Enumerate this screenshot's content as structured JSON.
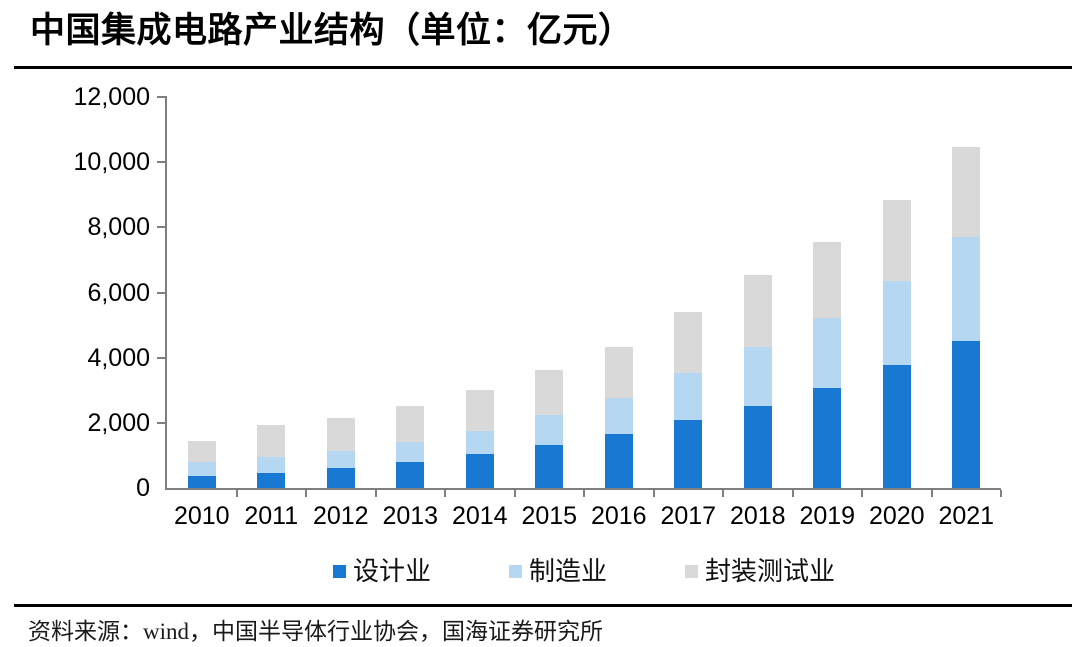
{
  "title": "中国集成电路产业结构（单位：亿元）",
  "source_note": "资料来源：wind，中国半导体行业协会，国海证券研究所",
  "colors": {
    "design_blue": "#1878D2",
    "manufacturing_light_blue": "#B6D7F2",
    "packaging_gray": "#D9D9D9",
    "axis_gray": "#7F7F7F",
    "rule_black": "#000000"
  },
  "chart_data": {
    "type": "bar",
    "stacked": true,
    "title": "中国集成电路产业结构（单位：亿元）",
    "categories": [
      "2010",
      "2011",
      "2012",
      "2013",
      "2014",
      "2015",
      "2016",
      "2017",
      "2018",
      "2019",
      "2020",
      "2021"
    ],
    "series": [
      {
        "name": "设计业",
        "color": "#1878D2",
        "values": [
          363.9,
          473.7,
          621.7,
          808.8,
          1047.4,
          1325.0,
          1644.3,
          2073.5,
          2519.3,
          3063.5,
          3778.4,
          4519.0
        ]
      },
      {
        "name": "制造业",
        "color": "#B6D7F2",
        "values": [
          447.1,
          473.1,
          503.2,
          600.9,
          712.1,
          900.8,
          1126.9,
          1448.1,
          1818.2,
          2149.1,
          2560.1,
          3176.3
        ]
      },
      {
        "name": "封装测试业",
        "color": "#D9D9D9",
        "values": [
          629.2,
          975.7,
          1035.7,
          1098.8,
          1255.9,
          1384.0,
          1564.3,
          1889.7,
          2193.9,
          2349.7,
          2509.5,
          2763.0
        ]
      }
    ],
    "ylim": [
      0,
      12000
    ],
    "ytick_interval": 2000,
    "ytick_labels": [
      "0",
      "2,000",
      "4,000",
      "6,000",
      "8,000",
      "10,000",
      "12,000"
    ],
    "xlabel": "",
    "ylabel": "",
    "grid": false,
    "legend_position": "bottom"
  }
}
